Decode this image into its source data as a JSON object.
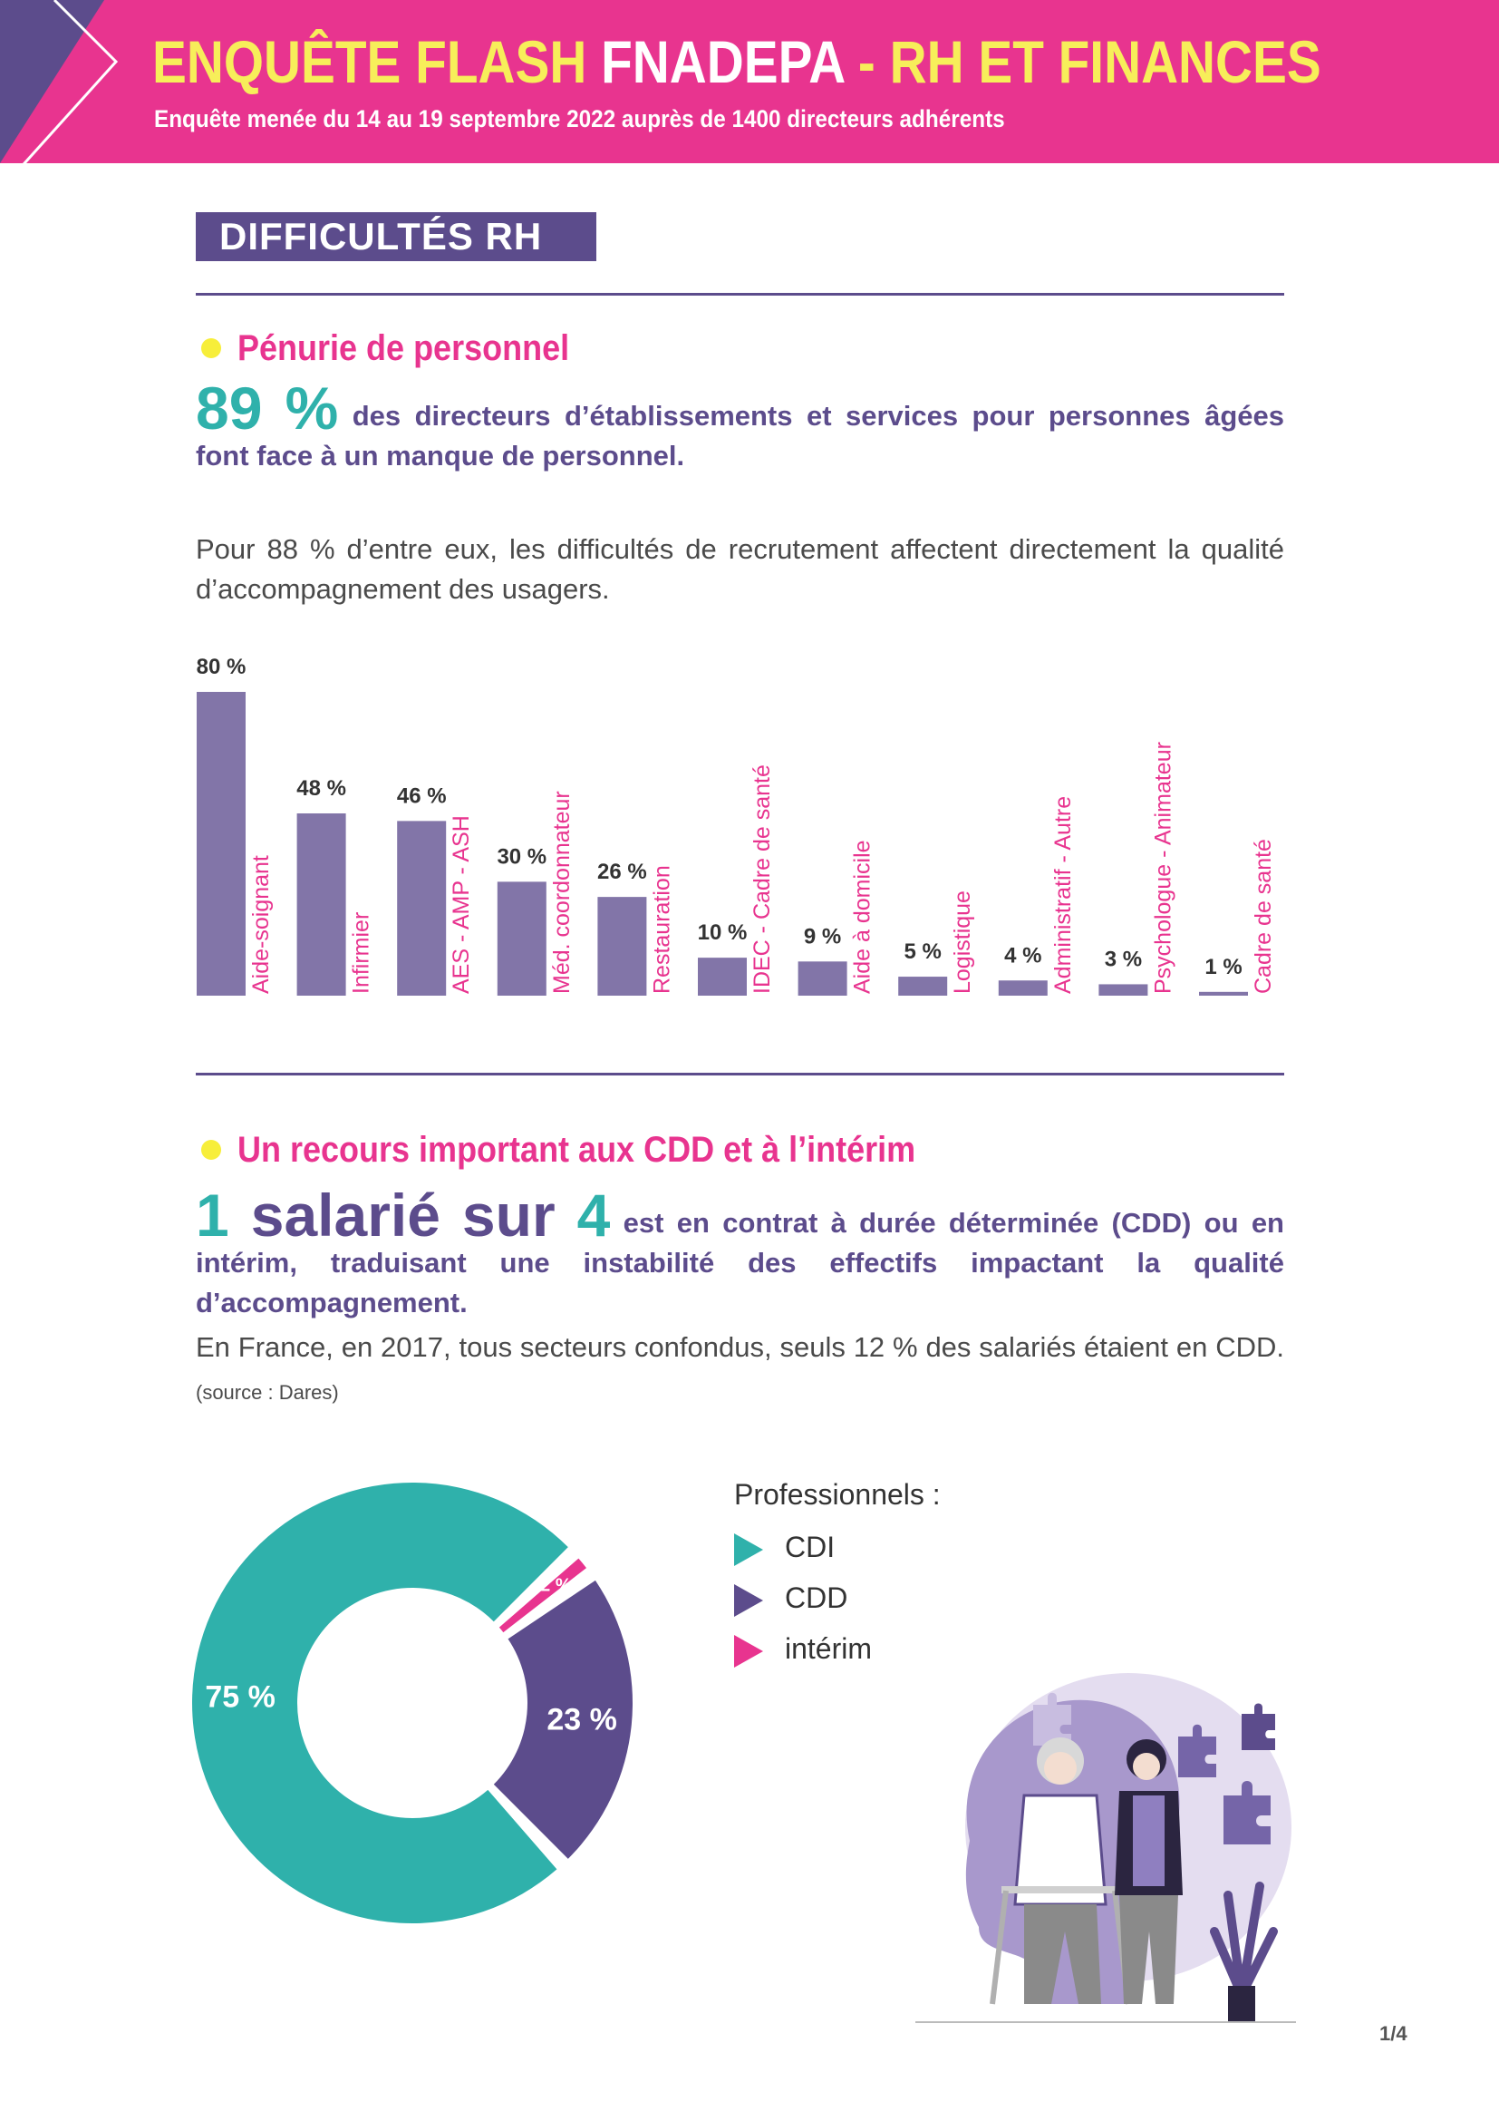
{
  "header": {
    "title_part1": "ENQUÊTE FLASH ",
    "title_part2": "FNADEPA",
    "title_part3": " - RH ET FINANCES",
    "subtitle": "Enquête menée du 14 au 19 septembre 2022 auprès de 1400 directeurs adhérents"
  },
  "section": {
    "tag": "DIFFICULTÉS RH"
  },
  "shortage": {
    "heading": "Pénurie de personnel",
    "stat": "89 %",
    "stat_text": " des directeurs d’établissements et services pour personnes âgées font face à un manque de personnel.",
    "paragraph": "Pour 88 % d’entre eux, les difficultés de recrutement affectent directement la qualité d’accompagnement des usagers."
  },
  "contracts": {
    "heading": "Un recours important aux CDD et à l’intérim",
    "stat_a": "1",
    "stat_mid": " salarié sur ",
    "stat_b": "4",
    "stat_text": " est en contrat à durée déterminée (CDD) ou en intérim, traduisant une instabilité des effectifs impactant la qualité d’accompagnement.",
    "paragraph": "En France, en 2017, tous secteurs confondus, seuls 12 % des salariés étaient en CDD.",
    "source": " (source : Dares)"
  },
  "legend": {
    "title": "Professionnels :",
    "items": [
      {
        "label": "CDI",
        "color": "#2fb1ab"
      },
      {
        "label": "CDD",
        "color": "#5c4c8c"
      },
      {
        "label": "intérim",
        "color": "#e8348f"
      }
    ]
  },
  "page_number": "1/4",
  "colors": {
    "pink": "#e8348f",
    "purple": "#5c4c8c",
    "teal": "#2fb1ab",
    "yellow": "#f7ee5a",
    "bar": "#8275a8"
  },
  "chart_data": [
    {
      "type": "bar",
      "categories": [
        "Aide-soignant",
        "Infirmier",
        "AES - AMP - ASH",
        "Méd. coordonnateur",
        "Restauration",
        "IDEC - Cadre de santé",
        "Aide à domicile",
        "Logistique",
        "Administratif - Autre",
        "Psychologue - Animateur",
        "Cadre de santé"
      ],
      "values": [
        80,
        48,
        46,
        30,
        26,
        10,
        9,
        5,
        4,
        3,
        1
      ],
      "labels": [
        "80 %",
        "48 %",
        "46 %",
        "30 %",
        "26 %",
        "10 %",
        "9 %",
        "5 %",
        "4 %",
        "3 %",
        "1 %"
      ],
      "ylim": [
        0,
        80
      ]
    },
    {
      "type": "pie",
      "categories": [
        "CDI",
        "CDD",
        "intérim"
      ],
      "values": [
        75,
        23,
        2
      ],
      "labels": [
        "75 %",
        "23 %",
        "2 %"
      ],
      "legend": "right"
    }
  ]
}
